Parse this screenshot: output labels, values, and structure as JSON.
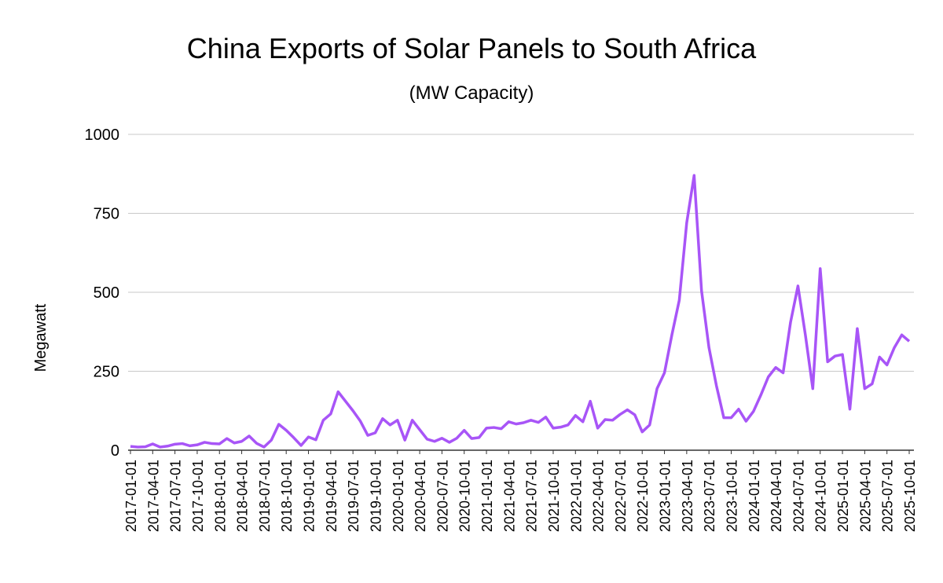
{
  "chart_data": {
    "type": "line",
    "title": "China Exports of Solar Panels to South Africa",
    "subtitle": "(MW Capacity)",
    "y_label": "Megawatt",
    "categories": [
      "2017-01-01",
      null,
      null,
      "2017-04-01",
      null,
      null,
      "2017-07-01",
      null,
      null,
      "2017-10-01",
      null,
      null,
      "2018-01-01",
      null,
      null,
      "2018-04-01",
      null,
      null,
      "2018-07-01",
      null,
      null,
      "2018-10-01",
      null,
      null,
      "2019-01-01",
      null,
      null,
      "2019-04-01",
      null,
      null,
      "2019-07-01",
      null,
      null,
      "2019-10-01",
      null,
      null,
      "2020-01-01",
      null,
      null,
      "2020-04-01",
      null,
      null,
      "2020-07-01",
      null,
      null,
      "2020-10-01",
      null,
      null,
      "2021-01-01",
      null,
      null,
      "2021-04-01",
      null,
      null,
      "2021-07-01",
      null,
      null,
      "2021-10-01",
      null,
      null,
      "2022-01-01",
      null,
      null,
      "2022-04-01",
      null,
      null,
      "2022-07-01",
      null,
      null,
      "2022-10-01",
      null,
      null,
      "2023-01-01",
      null,
      null,
      "2023-04-01",
      null,
      null,
      "2023-07-01",
      null,
      null,
      "2023-10-01",
      null,
      null,
      "2024-01-01",
      null,
      null,
      "2024-04-01",
      null,
      null,
      "2024-07-01",
      null,
      null,
      "2024-10-01",
      null,
      null,
      "2025-01-01",
      null,
      null,
      "2025-04-01",
      null,
      null,
      "2025-07-01",
      null,
      null,
      "2025-10-01"
    ],
    "series": [
      {
        "name": "Megawatt",
        "color": "#a855f7",
        "values": [
          12,
          10,
          11,
          20,
          10,
          13,
          19,
          21,
          14,
          17,
          25,
          21,
          20,
          37,
          23,
          28,
          45,
          22,
          10,
          32,
          82,
          63,
          40,
          15,
          42,
          33,
          95,
          115,
          185,
          155,
          125,
          92,
          47,
          55,
          100,
          80,
          95,
          32,
          95,
          65,
          35,
          28,
          38,
          25,
          38,
          63,
          37,
          40,
          70,
          72,
          68,
          90,
          83,
          87,
          95,
          88,
          105,
          70,
          73,
          80,
          110,
          90,
          155,
          70,
          97,
          95,
          113,
          128,
          112,
          58,
          80,
          195,
          245,
          365,
          475,
          720,
          870,
          505,
          325,
          205,
          103,
          103,
          130,
          92,
          123,
          175,
          232,
          262,
          245,
          405,
          520,
          365,
          195,
          575,
          280,
          298,
          303,
          130,
          385,
          195,
          210,
          295,
          270,
          325,
          365,
          345
        ]
      }
    ],
    "ylim": [
      0,
      1000
    ],
    "yticks": [
      0,
      250,
      500,
      750,
      1000
    ],
    "grid": true
  }
}
